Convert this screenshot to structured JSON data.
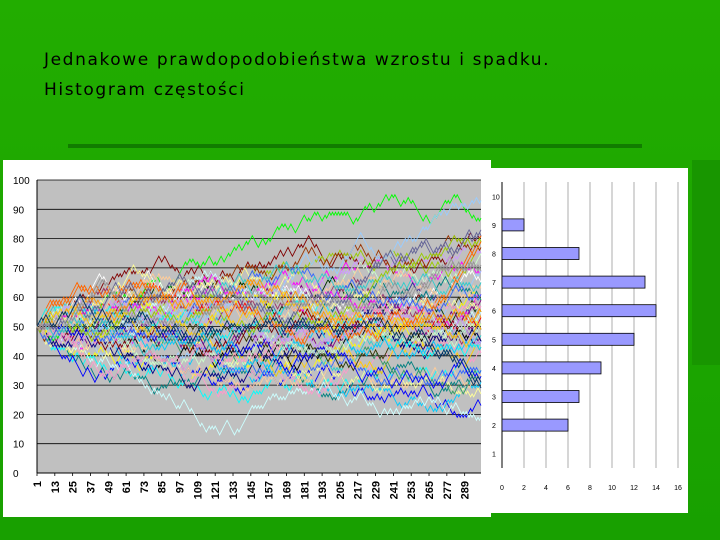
{
  "slide": {
    "title_line1": "Jednakowe prawdopodobieństwa wzrostu i spadku.",
    "title_line2": "Histogram częstości",
    "background": "#1fa800"
  },
  "chart_data": [
    {
      "type": "line",
      "title": "",
      "xlabel": "",
      "ylabel": "",
      "ylim": [
        0,
        100
      ],
      "y_ticks": [
        "0",
        "10",
        "20",
        "30",
        "40",
        "50",
        "60",
        "70",
        "80",
        "90",
        "100"
      ],
      "x_tick_labels": [
        "1",
        "13",
        "25",
        "37",
        "49",
        "61",
        "73",
        "85",
        "97",
        "109",
        "121",
        "133",
        "145",
        "157",
        "169",
        "181",
        "193",
        "205",
        "217",
        "229",
        "241",
        "253",
        "265",
        "277",
        "289"
      ],
      "x_count": 300,
      "start_value": 50,
      "series_count": 60,
      "plot_background": "#c0c0c0",
      "grid": "horizontal",
      "colors": [
        "#000080",
        "#ff00ff",
        "#ffff00",
        "#00ffff",
        "#800080",
        "#800000",
        "#008080",
        "#0000ff",
        "#00ccff",
        "#ccffff",
        "#ccffcc",
        "#ffff99",
        "#99ccff",
        "#ff99cc",
        "#cc99ff",
        "#ffcc99",
        "#3366ff",
        "#33cccc",
        "#99cc00",
        "#ffcc00",
        "#ff9900",
        "#ff6600",
        "#666699",
        "#969696",
        "#003366",
        "#339966",
        "#003300",
        "#333300",
        "#993300",
        "#993366",
        "#333399",
        "#000000",
        "#ff0000",
        "#00ff00",
        "#ffffff"
      ]
    },
    {
      "type": "bar",
      "orientation": "horizontal",
      "title": "",
      "categories": [
        "1",
        "2",
        "3",
        "4",
        "5",
        "6",
        "7",
        "8",
        "9",
        "10"
      ],
      "values": [
        0,
        6,
        7,
        9,
        12,
        14,
        13,
        7,
        2,
        0
      ],
      "xlim": [
        0,
        16
      ],
      "x_ticks": [
        "0",
        "2",
        "4",
        "6",
        "8",
        "10",
        "12",
        "14",
        "16"
      ],
      "bar_color": "#9999ff",
      "grid": "vertical"
    }
  ]
}
